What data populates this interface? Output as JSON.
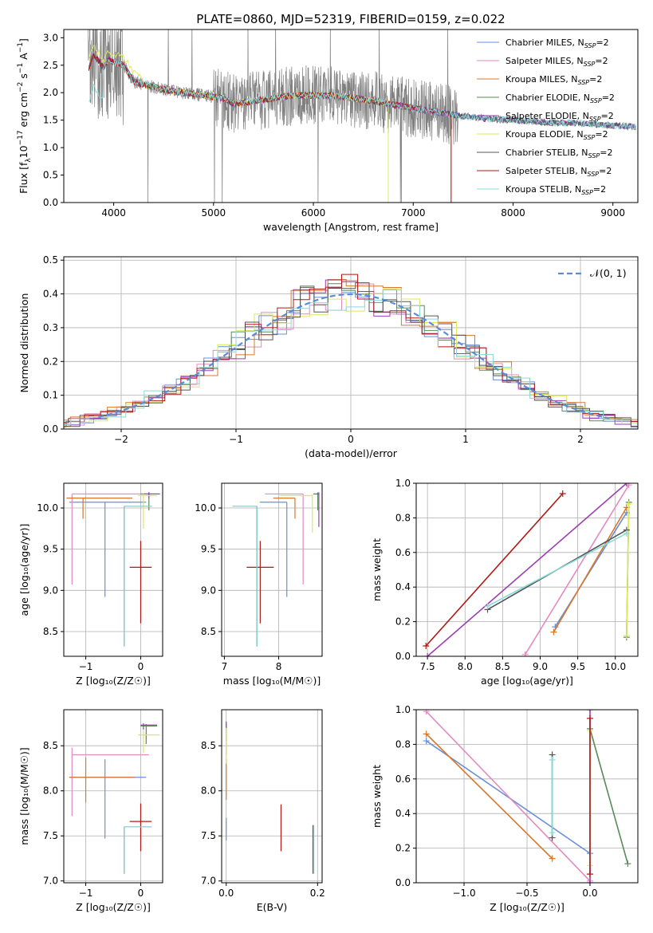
{
  "figure": {
    "title": "PLATE=0860, MJD=52319, FIBERID=0159, z=0.022"
  },
  "models": [
    {
      "name": "Chabrier MILES",
      "color": "#6a8fd8"
    },
    {
      "name": "Salpeter MILES",
      "color": "#e58ac0"
    },
    {
      "name": "Kroupa MILES",
      "color": "#d9782c"
    },
    {
      "name": "Chabrier ELODIE",
      "color": "#5a8a5a"
    },
    {
      "name": "Salpeter ELODIE",
      "color": "#9b3fb0"
    },
    {
      "name": "Kroupa ELODIE",
      "color": "#dce85a"
    },
    {
      "name": "Chabrier STELIB",
      "color": "#555555"
    },
    {
      "name": "Salpeter STELIB",
      "color": "#b01818"
    },
    {
      "name": "Kroupa STELIB",
      "color": "#8ad8d8"
    }
  ],
  "legend_suffix": {
    "prefix": ", N",
    "sub": "SSP",
    "suffix": "=2"
  },
  "chart_data": [
    {
      "id": "spectrum",
      "type": "line",
      "title": "PLATE=0860, MJD=52319, FIBERID=0159, z=0.022",
      "xlabel": "wavelength [Angstrom, rest frame]",
      "ylabel": {
        "main": "Flux [f",
        "sub": "λ",
        "mid": "10",
        "sup1": "−17",
        "rest": " erg cm",
        "sup2": "−2",
        "rest2": " s",
        "sup3": "−1",
        "rest3": " A",
        "sup4": "−1",
        "end": "]"
      },
      "xlim": [
        3500,
        9250
      ],
      "ylim": [
        0,
        3.15
      ],
      "xticks": [
        4000,
        5000,
        6000,
        7000,
        8000,
        9000
      ],
      "yticks": [
        0.0,
        0.5,
        1.0,
        1.5,
        2.0,
        2.5,
        3.0
      ],
      "grid": false,
      "legend": "upper right",
      "data_color": "#808080",
      "continuum": {
        "x": [
          3750,
          3800,
          3900,
          3950,
          4000,
          4100,
          4200,
          4300,
          4400,
          4500,
          4700,
          4900,
          5100,
          5200,
          5400,
          5600,
          5800,
          6000,
          6200,
          6400,
          6600,
          6800,
          7000,
          7200,
          7400,
          7600,
          7800,
          8000,
          8200,
          8400,
          8600,
          8800,
          9000,
          9200
        ],
        "y": [
          2.45,
          2.7,
          2.45,
          2.6,
          2.55,
          2.5,
          2.2,
          2.15,
          2.1,
          2.05,
          2.0,
          1.95,
          1.9,
          1.8,
          1.85,
          1.9,
          1.95,
          1.95,
          1.95,
          1.9,
          1.85,
          1.78,
          1.72,
          1.66,
          1.6,
          1.55,
          1.52,
          1.5,
          1.48,
          1.45,
          1.45,
          1.43,
          1.4,
          1.38
        ]
      }
    },
    {
      "id": "residuals",
      "type": "histogram",
      "xlabel": "(data-model)/error",
      "ylabel": "Normed distribution",
      "xlim": [
        -2.5,
        2.5
      ],
      "ylim": [
        0,
        0.51
      ],
      "xticks": [
        -2,
        -1,
        0,
        1,
        2
      ],
      "xticklabels": [
        "−2",
        "−1",
        "0",
        "1",
        "2"
      ],
      "yticks": [
        0.0,
        0.1,
        0.2,
        0.3,
        0.4,
        0.5
      ],
      "grid": true,
      "legend": "upper right",
      "reference": {
        "label": "𝒩(0, 1)",
        "color": "#5a8ad8"
      }
    },
    {
      "id": "age_vs_Z",
      "type": "errorbar",
      "xlabel": "Z [log₁₀(Z/Z☉)]",
      "ylabel": "age  [log₁₀(age/yr)]",
      "xlim": [
        -1.4,
        0.4
      ],
      "ylim": [
        8.2,
        10.3
      ],
      "xticks": [
        -1,
        0
      ],
      "xticklabels": [
        "−1",
        "0"
      ],
      "yticks": [
        8.5,
        9.0,
        9.5,
        10.0
      ],
      "grid": true,
      "points": [
        {
          "model": 0,
          "x": -0.65,
          "y": 10.07,
          "xerr": [
            0.65,
            0.75
          ],
          "yerr": [
            1.15,
            0.0
          ]
        },
        {
          "model": 1,
          "x": -1.25,
          "y": 10.17,
          "xerr": [
            0.0,
            1.4
          ],
          "yerr": [
            1.1,
            0.0
          ]
        },
        {
          "model": 2,
          "x": -1.05,
          "y": 10.12,
          "xerr": [
            0.3,
            0.9
          ],
          "yerr": [
            0.25,
            0.0
          ]
        },
        {
          "model": 3,
          "x": 0.15,
          "y": 10.17,
          "xerr": [
            0.15,
            0.2
          ],
          "yerr": [
            0.2,
            0.02
          ]
        },
        {
          "model": 4,
          "x": 0.15,
          "y": 10.17,
          "xerr": [
            0.1,
            0.2
          ],
          "yerr": [
            0.05,
            0.02
          ]
        },
        {
          "model": 5,
          "x": 0.05,
          "y": 10.15,
          "xerr": [
            0.1,
            0.25
          ],
          "yerr": [
            0.4,
            0.02
          ]
        },
        {
          "model": 6,
          "x": -0.3,
          "y": 10.02,
          "xerr": [
            0.0,
            0.5
          ],
          "yerr": [
            1.7,
            0.0
          ]
        },
        {
          "model": 7,
          "x": 0.0,
          "y": 9.28,
          "xerr": [
            0.2,
            0.2
          ],
          "yerr": [
            0.68,
            0.32
          ]
        },
        {
          "model": 8,
          "x": -0.3,
          "y": 10.02,
          "xerr": [
            0.0,
            0.5
          ],
          "yerr": [
            1.7,
            0.0
          ]
        }
      ]
    },
    {
      "id": "age_vs_mass",
      "type": "errorbar",
      "xlabel": "mass [log₁₀(M/M☉)]",
      "ylabel": "",
      "xlim": [
        6.95,
        8.8
      ],
      "ylim": [
        8.2,
        10.3
      ],
      "xticks": [
        7,
        8
      ],
      "xticklabels": [
        "7",
        "8"
      ],
      "yticks": [
        8.5,
        9.0,
        9.5,
        10.0
      ],
      "grid": true,
      "points": [
        {
          "model": 0,
          "x": 8.15,
          "y": 10.07,
          "xerr": [
            0.5,
            0.0
          ],
          "yerr": [
            1.15,
            0.0
          ]
        },
        {
          "model": 1,
          "x": 8.45,
          "y": 10.17,
          "xerr": [
            0.7,
            0.0
          ],
          "yerr": [
            1.1,
            0.0
          ]
        },
        {
          "model": 2,
          "x": 8.3,
          "y": 10.12,
          "xerr": [
            0.4,
            0.0
          ],
          "yerr": [
            0.25,
            0.0
          ]
        },
        {
          "model": 3,
          "x": 8.72,
          "y": 10.17,
          "xerr": [
            0.0,
            0.0
          ],
          "yerr": [
            0.2,
            0.02
          ]
        },
        {
          "model": 4,
          "x": 8.74,
          "y": 10.17,
          "xerr": [
            0.1,
            0.0
          ],
          "yerr": [
            0.4,
            0.02
          ]
        },
        {
          "model": 5,
          "x": 8.62,
          "y": 10.15,
          "xerr": [
            0.6,
            0.0
          ],
          "yerr": [
            0.45,
            0.02
          ]
        },
        {
          "model": 6,
          "x": 7.6,
          "y": 10.02,
          "xerr": [
            0.45,
            0.0
          ],
          "yerr": [
            1.7,
            0.0
          ]
        },
        {
          "model": 7,
          "x": 7.66,
          "y": 9.28,
          "xerr": [
            0.25,
            0.25
          ],
          "yerr": [
            0.68,
            0.32
          ]
        },
        {
          "model": 8,
          "x": 7.6,
          "y": 10.02,
          "xerr": [
            0.45,
            0.0
          ],
          "yerr": [
            1.7,
            0.0
          ]
        }
      ]
    },
    {
      "id": "weight_vs_age",
      "type": "line",
      "xlabel": "age  [log₁₀(age/yr)]",
      "ylabel": "mass weight",
      "xlim": [
        7.35,
        10.3
      ],
      "ylim": [
        0,
        1
      ],
      "xticks": [
        7.5,
        8.0,
        8.5,
        9.0,
        9.5,
        10.0
      ],
      "xticklabels": [
        "7.5",
        "8.0",
        "8.5",
        "9.0",
        "9.5",
        "10.0"
      ],
      "yticks": [
        0.0,
        0.2,
        0.4,
        0.6,
        0.8,
        1.0
      ],
      "grid": true,
      "series": [
        {
          "model": 0,
          "x": [
            9.2,
            10.15
          ],
          "y": [
            0.17,
            0.83
          ]
        },
        {
          "model": 1,
          "x": [
            8.8,
            10.18
          ],
          "y": [
            0.01,
            0.99
          ]
        },
        {
          "model": 2,
          "x": [
            9.18,
            10.15
          ],
          "y": [
            0.14,
            0.86
          ]
        },
        {
          "model": 3,
          "x": [
            10.15,
            10.18
          ],
          "y": [
            0.11,
            0.89
          ]
        },
        {
          "model": 4,
          "x": [
            7.5,
            10.15
          ],
          "y": [
            0.0,
            1.0
          ]
        },
        {
          "model": 5,
          "x": [
            10.15,
            10.18
          ],
          "y": [
            0.12,
            0.88
          ]
        },
        {
          "model": 6,
          "x": [
            8.3,
            10.15
          ],
          "y": [
            0.27,
            0.73
          ]
        },
        {
          "model": 7,
          "x": [
            7.48,
            9.3
          ],
          "y": [
            0.06,
            0.94
          ]
        },
        {
          "model": 8,
          "x": [
            8.3,
            10.15
          ],
          "y": [
            0.29,
            0.71
          ]
        }
      ]
    },
    {
      "id": "mass_vs_Z",
      "type": "errorbar",
      "xlabel": "Z [log₁₀(Z/Z☉)]",
      "ylabel": "mass [log₁₀(M/M☉)]",
      "xlim": [
        -1.4,
        0.4
      ],
      "ylim": [
        6.98,
        8.9
      ],
      "xticks": [
        -1,
        0
      ],
      "xticklabels": [
        "−1",
        "0"
      ],
      "yticks": [
        7.0,
        7.5,
        8.0,
        8.5
      ],
      "grid": true,
      "points": [
        {
          "model": 0,
          "x": -0.65,
          "y": 8.15,
          "xerr": [
            0.65,
            0.75
          ],
          "yerr": [
            0.68,
            0.2
          ]
        },
        {
          "model": 1,
          "x": -1.25,
          "y": 8.4,
          "xerr": [
            0.0,
            1.4
          ],
          "yerr": [
            0.68,
            0.08
          ]
        },
        {
          "model": 2,
          "x": -1.0,
          "y": 8.15,
          "xerr": [
            0.3,
            0.9
          ],
          "yerr": [
            0.28,
            0.22
          ]
        },
        {
          "model": 3,
          "x": 0.1,
          "y": 8.72,
          "xerr": [
            0.1,
            0.2
          ],
          "yerr": [
            0.2,
            0.02
          ]
        },
        {
          "model": 4,
          "x": 0.05,
          "y": 8.73,
          "xerr": [
            0.05,
            0.25
          ],
          "yerr": [
            0.05,
            0.02
          ]
        },
        {
          "model": 5,
          "x": 0.05,
          "y": 8.62,
          "xerr": [
            0.1,
            0.3
          ],
          "yerr": [
            0.2,
            0.05
          ]
        },
        {
          "model": 6,
          "x": -0.3,
          "y": 7.6,
          "xerr": [
            0.0,
            0.5
          ],
          "yerr": [
            0.52,
            0.0
          ]
        },
        {
          "model": 7,
          "x": 0.0,
          "y": 7.66,
          "xerr": [
            0.2,
            0.2
          ],
          "yerr": [
            0.33,
            0.2
          ]
        },
        {
          "model": 8,
          "x": -0.3,
          "y": 7.6,
          "xerr": [
            0.0,
            0.5
          ],
          "yerr": [
            0.52,
            0.0
          ]
        }
      ]
    },
    {
      "id": "mass_vs_EBV",
      "type": "errorbar",
      "xlabel": "E(B-V)",
      "ylabel": "",
      "xlim": [
        -0.01,
        0.21
      ],
      "ylim": [
        6.98,
        8.9
      ],
      "xticks": [
        0.0,
        0.2
      ],
      "xticklabels": [
        "0.0",
        "0.2"
      ],
      "yticks": [
        7.0,
        7.5,
        8.0,
        8.5
      ],
      "grid": true,
      "points": [
        {
          "model": 0,
          "x": 0.0,
          "y": 7.7,
          "xerr": [
            0,
            0
          ],
          "yerr": [
            0.25,
            0.0
          ]
        },
        {
          "model": 1,
          "x": 0.0,
          "y": 8.45,
          "xerr": [
            0,
            0
          ],
          "yerr": [
            0.05,
            0.1
          ]
        },
        {
          "model": 2,
          "x": 0.0,
          "y": 8.0,
          "xerr": [
            0,
            0
          ],
          "yerr": [
            0.1,
            0.35
          ]
        },
        {
          "model": 3,
          "x": 0.0,
          "y": 8.7,
          "xerr": [
            0,
            0
          ],
          "yerr": [
            0.15,
            0.05
          ]
        },
        {
          "model": 4,
          "x": 0.0,
          "y": 8.72,
          "xerr": [
            0,
            0
          ],
          "yerr": [
            0.05,
            0.05
          ]
        },
        {
          "model": 5,
          "x": 0.0,
          "y": 8.6,
          "xerr": [
            0,
            0
          ],
          "yerr": [
            0.3,
            0.1
          ]
        },
        {
          "model": 6,
          "x": 0.19,
          "y": 7.35,
          "xerr": [
            0,
            0
          ],
          "yerr": [
            0.27,
            0.27
          ]
        },
        {
          "model": 7,
          "x": 0.12,
          "y": 7.58,
          "xerr": [
            0,
            0
          ],
          "yerr": [
            0.25,
            0.27
          ]
        },
        {
          "model": 8,
          "x": 0.192,
          "y": 7.35,
          "xerr": [
            0,
            0
          ],
          "yerr": [
            0.27,
            0.27
          ]
        }
      ]
    },
    {
      "id": "weight_vs_Z",
      "type": "line",
      "xlabel": "Z [log₁₀(Z/Z☉)]",
      "ylabel": "mass weight",
      "xlim": [
        -1.38,
        0.38
      ],
      "ylim": [
        0,
        1
      ],
      "xticks": [
        -1.0,
        -0.5,
        0.0
      ],
      "xticklabels": [
        "−1.0",
        "−0.5",
        "0.0"
      ],
      "yticks": [
        0.0,
        0.2,
        0.4,
        0.6,
        0.8,
        1.0
      ],
      "grid": true,
      "series": [
        {
          "model": 0,
          "x": [
            -1.3,
            0.0
          ],
          "y": [
            0.82,
            0.17
          ]
        },
        {
          "model": 1,
          "x": [
            -1.3,
            0.0
          ],
          "y": [
            0.99,
            0.01
          ]
        },
        {
          "model": 2,
          "x": [
            -1.3,
            -0.3
          ],
          "y": [
            0.86,
            0.14
          ]
        },
        {
          "model": 3,
          "x": [
            0.0,
            0.3
          ],
          "y": [
            0.89,
            0.11
          ]
        },
        {
          "model": 4,
          "x": [
            0.0,
            0.0
          ],
          "y": [
            0.0,
            1.0
          ]
        },
        {
          "model": 5,
          "x": [
            0.0,
            0.0
          ],
          "y": [
            0.1,
            0.88
          ]
        },
        {
          "model": 6,
          "x": [
            -0.3,
            -0.3
          ],
          "y": [
            0.26,
            0.74
          ]
        },
        {
          "model": 7,
          "x": [
            0.0,
            0.0
          ],
          "y": [
            0.05,
            0.95
          ]
        },
        {
          "model": 8,
          "x": [
            -0.3,
            -0.3
          ],
          "y": [
            0.29,
            0.71
          ]
        }
      ]
    }
  ]
}
